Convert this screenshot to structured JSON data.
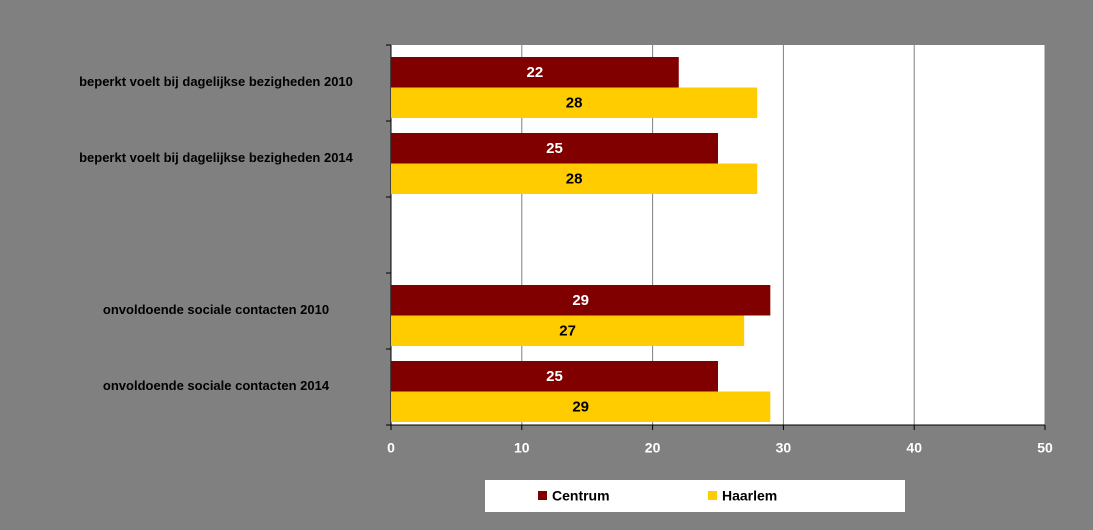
{
  "chart_data": {
    "type": "bar",
    "orientation": "horizontal",
    "categories": [
      "beperkt voelt bij dagelijkse bezigheden 2010",
      "beperkt voelt bij dagelijkse bezigheden 2014",
      null,
      "onvoldoende sociale contacten 2010",
      "onvoldoende sociale contacten 2014"
    ],
    "series": [
      {
        "name": "Centrum",
        "color": "#800000",
        "values": [
          22,
          25,
          null,
          29,
          25
        ]
      },
      {
        "name": "Haarlem",
        "color": "#ffcc00",
        "values": [
          28,
          28,
          null,
          27,
          29
        ]
      }
    ],
    "xlim": [
      0,
      50
    ],
    "xticks": [
      0,
      10,
      20,
      30,
      40,
      50
    ],
    "grid": true,
    "legend": "bottom"
  }
}
